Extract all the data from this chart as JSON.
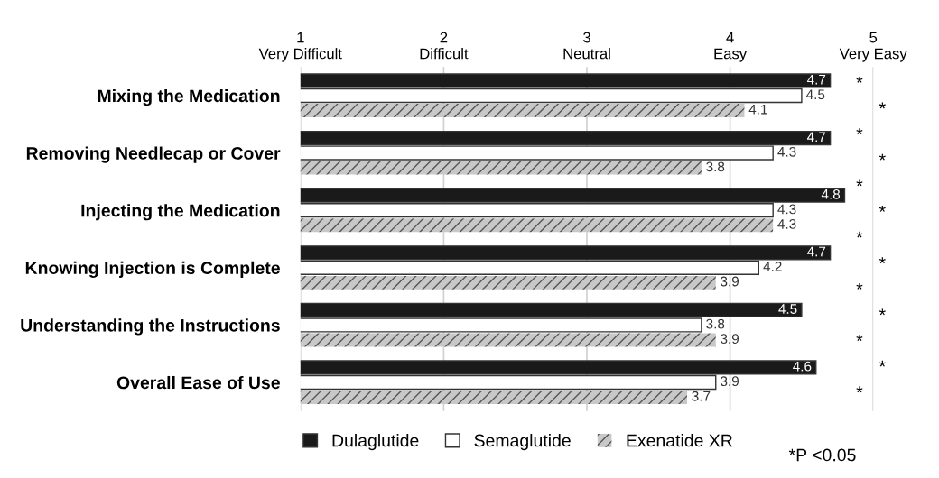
{
  "chart_data": {
    "type": "bar",
    "orientation": "horizontal",
    "categories": [
      "Mixing the Medication",
      "Removing Needlecap or Cover",
      "Injecting the Medication",
      "Knowing Injection is Complete",
      "Understanding the Instructions",
      "Overall Ease of Use"
    ],
    "series": [
      {
        "name": "Dulaglutide",
        "color": "#1a1a1a",
        "values": [
          4.7,
          4.7,
          4.8,
          4.7,
          4.5,
          4.6
        ]
      },
      {
        "name": "Semaglutide",
        "color": "#ffffff",
        "values": [
          4.5,
          4.3,
          4.3,
          4.2,
          3.8,
          3.9
        ]
      },
      {
        "name": "Exenatide XR",
        "color": "#c8c8c8",
        "values": [
          4.1,
          3.8,
          4.3,
          3.9,
          3.9,
          3.7
        ]
      }
    ],
    "xlim": [
      1,
      5
    ],
    "xticks": [
      {
        "value": 1,
        "label": "1\nVery Difficult"
      },
      {
        "value": 2,
        "label": "2\nDifficult"
      },
      {
        "value": 3,
        "label": "3\nNeutral"
      },
      {
        "value": 4,
        "label": "4\nEasy"
      },
      {
        "value": 5,
        "label": "5\nVery Easy"
      }
    ],
    "grid": "x",
    "legend": "bottom",
    "data_labels": true,
    "annotations": [
      "*",
      "*",
      "*",
      "*",
      "*",
      "*",
      "*",
      "*",
      "*",
      "*",
      "*",
      "*",
      "*",
      "*P <0.05"
    ]
  }
}
